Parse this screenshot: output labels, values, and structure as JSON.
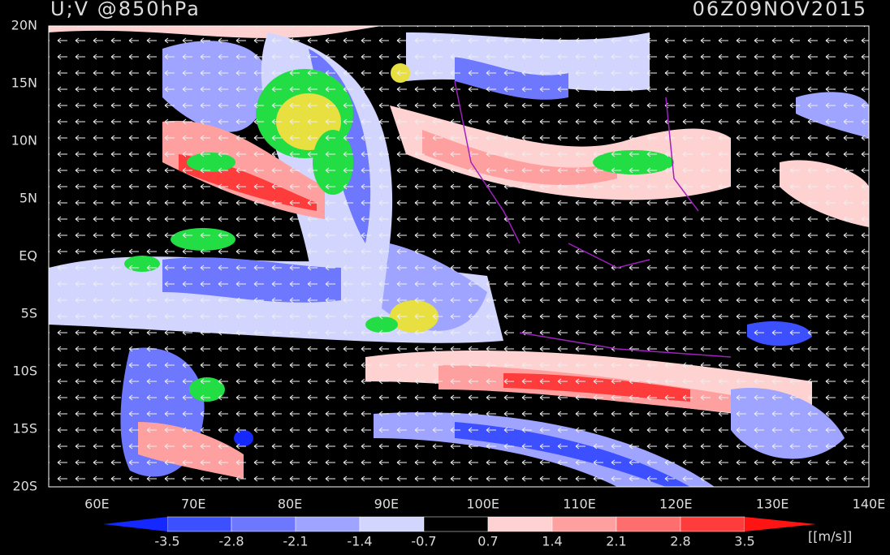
{
  "header": {
    "title": "U;V @850hPa",
    "time": "06Z09NOV2015"
  },
  "map": {
    "lon_range": [
      55,
      140
    ],
    "lat_range": [
      -20,
      20
    ],
    "lat_ticks": [
      {
        "value": 20,
        "label": "20N"
      },
      {
        "value": 15,
        "label": "15N"
      },
      {
        "value": 10,
        "label": "10N"
      },
      {
        "value": 5,
        "label": "5N"
      },
      {
        "value": 0,
        "label": "EQ"
      },
      {
        "value": -5,
        "label": "5S"
      },
      {
        "value": -10,
        "label": "10S"
      },
      {
        "value": -15,
        "label": "15S"
      },
      {
        "value": -20,
        "label": "20S"
      }
    ],
    "lon_ticks": [
      {
        "value": 60,
        "label": "60E"
      },
      {
        "value": 70,
        "label": "70E"
      },
      {
        "value": 80,
        "label": "80E"
      },
      {
        "value": 90,
        "label": "90E"
      },
      {
        "value": 100,
        "label": "100E"
      },
      {
        "value": 110,
        "label": "110E"
      },
      {
        "value": 120,
        "label": "120E"
      },
      {
        "value": 130,
        "label": "130E"
      },
      {
        "value": 140,
        "label": "140E"
      }
    ]
  },
  "colorbar": {
    "levels": [
      -3.5,
      -2.8,
      -2.1,
      -1.4,
      -0.7,
      0.7,
      1.4,
      2.1,
      2.8,
      3.5
    ],
    "colors": [
      "#1428ff",
      "#3c50ff",
      "#6e78ff",
      "#9ea4ff",
      "#d2d6ff",
      "#000000",
      "#ffd2d2",
      "#ffa0a0",
      "#ff6e6e",
      "#ff3c3c",
      "#ff1414"
    ],
    "unit": "[[m/s]]"
  }
}
